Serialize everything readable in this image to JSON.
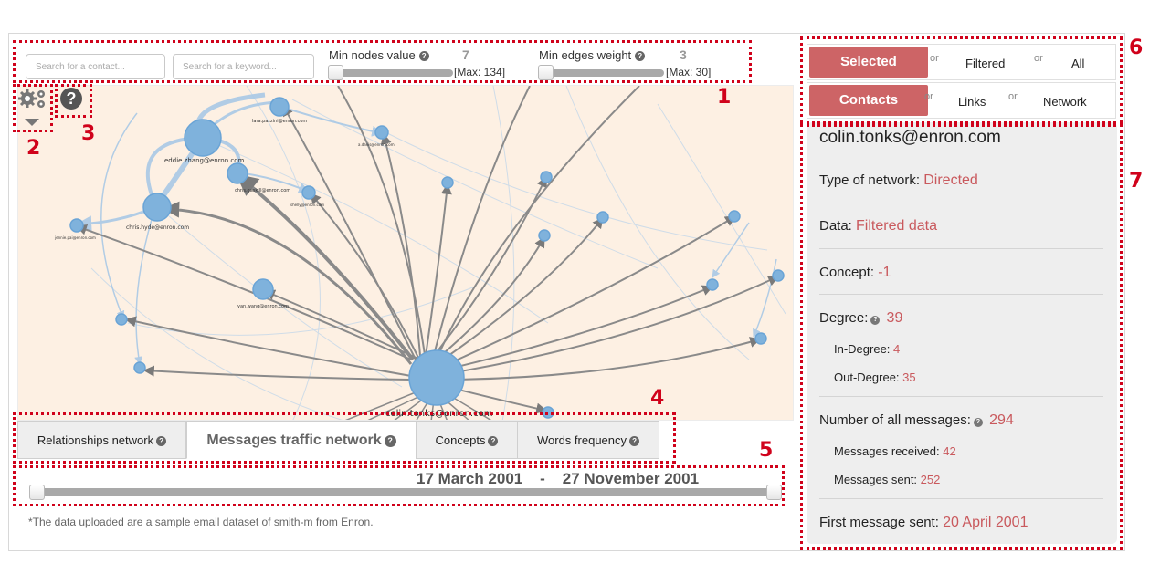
{
  "toolbar": {
    "search_contact_placeholder": "Search for a contact...",
    "search_keyword_placeholder": "Search for a keyword...",
    "min_nodes_label": "Min nodes value",
    "min_nodes_value": "7",
    "min_nodes_max": "[Max: 134]",
    "min_edges_label": "Min edges weight",
    "min_edges_value": "3",
    "min_edges_max": "[Max: 30]",
    "help_glyph": "?"
  },
  "annotations": [
    "1",
    "2",
    "3",
    "4",
    "5",
    "6",
    "7"
  ],
  "graph": {
    "center_label": "colin.tonks@enron.com",
    "labels": [
      "eddie.zhang@enron.com",
      "chris.hyde@enron.com",
      "chris.gaskill@enron.com",
      "lara.pazzini@enron.com",
      "yan.wang@enron.com",
      "jennie.pai@enron.com",
      "a.davis@enron.com",
      "shelly@enron.com"
    ]
  },
  "tabs": [
    {
      "label": "Relationships network",
      "active": false
    },
    {
      "label": "Messages traffic network",
      "active": true
    },
    {
      "label": "Concepts",
      "active": false
    },
    {
      "label": "Words frequency",
      "active": false
    }
  ],
  "date_range": {
    "start": "17 March 2001",
    "separator": "-",
    "end": "27 November 2001"
  },
  "footnote": "*The data uploaded are a sample email dataset of smith-m from Enron.",
  "toggles": {
    "row1": {
      "selected": "Selected",
      "or": "or",
      "opt1": "Filtered",
      "opt2": "All"
    },
    "row2": {
      "selected": "Contacts",
      "or": "or",
      "opt1": "Links",
      "opt2": "Network"
    }
  },
  "info": {
    "email": "colin.tonks@enron.com",
    "type_label": "Type of network:",
    "type_value": "Directed",
    "data_label": "Data:",
    "data_value": "Filtered data",
    "concept_label": "Concept:",
    "concept_value": "-1",
    "degree_label": "Degree:",
    "degree_value": "39",
    "in_degree_label": "In-Degree:",
    "in_degree_value": "4",
    "out_degree_label": "Out-Degree:",
    "out_degree_value": "35",
    "messages_label": "Number of all messages:",
    "messages_value": "294",
    "received_label": "Messages received:",
    "received_value": "42",
    "sent_label": "Messages sent:",
    "sent_value": "252",
    "first_sent_label": "First message sent:",
    "first_sent_value": "20 April 2001"
  },
  "colors": {
    "accent": "#cd6466",
    "annotation": "#d0021b",
    "node": "#7fb2dc",
    "graph_bg": "#fdf0e3"
  }
}
